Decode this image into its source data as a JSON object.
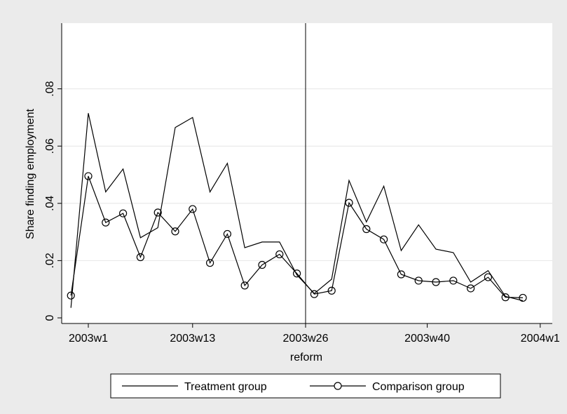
{
  "chart_data": {
    "type": "line",
    "xlabel": "reform",
    "ylabel": "Share finding employment",
    "x_ticks": [
      {
        "label": "2003w1",
        "week": 0
      },
      {
        "label": "2003w13",
        "week": 12
      },
      {
        "label": "2003w26",
        "week": 25
      },
      {
        "label": "2003w40",
        "week": 39
      },
      {
        "label": "2004w1",
        "week": 52
      }
    ],
    "y_ticks": [
      {
        "label": "0",
        "value": 0
      },
      {
        "label": ".02",
        "value": 0.02
      },
      {
        "label": ".04",
        "value": 0.04
      },
      {
        "label": ".06",
        "value": 0.06
      },
      {
        "label": ".08",
        "value": 0.08
      }
    ],
    "ylim": [
      0,
      0.1
    ],
    "xlim": [
      -3,
      52
    ],
    "reform_week": 25,
    "grid": "horizontal",
    "legend_position": "bottom",
    "series": [
      {
        "name": "Treatment group",
        "marker": "none",
        "x": [
          -2,
          0,
          2,
          4,
          6,
          8,
          10,
          12,
          14,
          16,
          18,
          20,
          22,
          24,
          26,
          28,
          30,
          32,
          34,
          36,
          38,
          40,
          42,
          44,
          46,
          48,
          50
        ],
        "y": [
          0.0035,
          0.0715,
          0.044,
          0.052,
          0.028,
          0.0315,
          0.0665,
          0.07,
          0.044,
          0.054,
          0.0245,
          0.0265,
          0.0265,
          0.015,
          0.0085,
          0.0135,
          0.048,
          0.0335,
          0.046,
          0.0235,
          0.0325,
          0.024,
          0.0228,
          0.0125,
          0.0165,
          0.0075,
          0.006
        ]
      },
      {
        "name": "Comparison group",
        "marker": "circle",
        "x": [
          -2,
          0,
          2,
          4,
          6,
          8,
          10,
          12,
          14,
          16,
          18,
          20,
          22,
          24,
          26,
          28,
          30,
          32,
          34,
          36,
          38,
          40,
          42,
          44,
          46,
          48,
          50
        ],
        "y": [
          0.0078,
          0.0495,
          0.0333,
          0.0365,
          0.0212,
          0.0368,
          0.0302,
          0.038,
          0.0192,
          0.0293,
          0.0113,
          0.0185,
          0.0222,
          0.0155,
          0.0083,
          0.0095,
          0.0402,
          0.031,
          0.0274,
          0.0152,
          0.013,
          0.0125,
          0.013,
          0.0103,
          0.0142,
          0.0072,
          0.007
        ]
      }
    ]
  }
}
